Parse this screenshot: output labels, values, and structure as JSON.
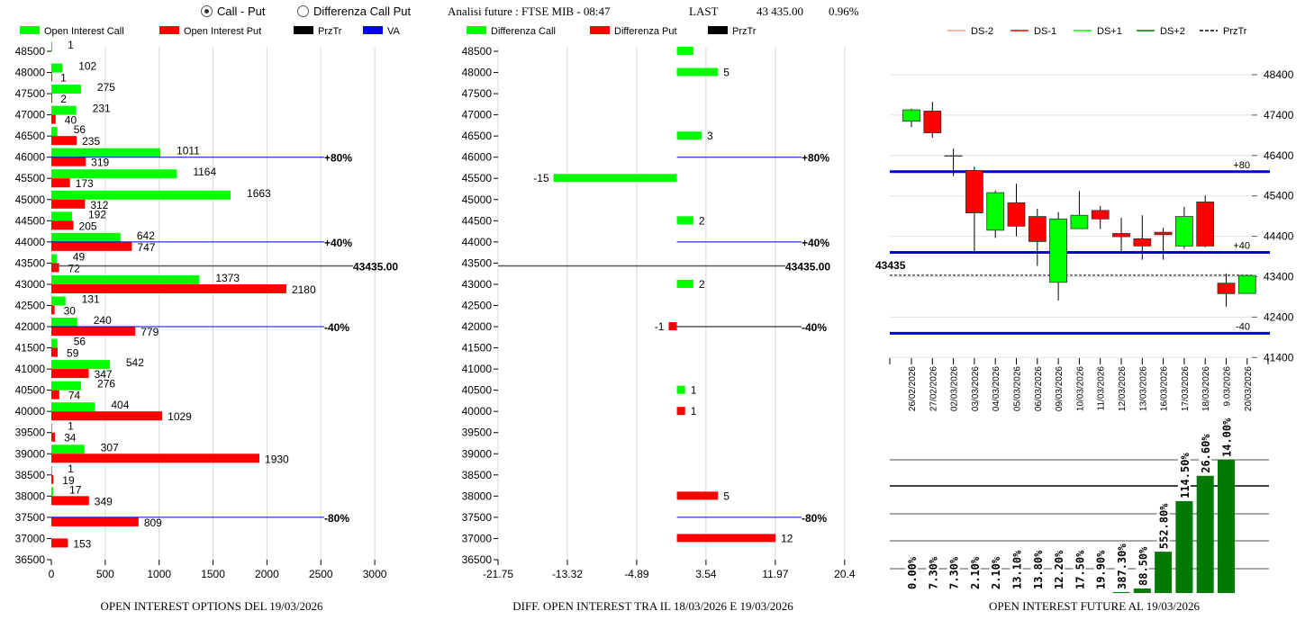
{
  "header": {
    "radio_options": [
      {
        "label": "Call - Put",
        "checked": true
      },
      {
        "label": "Differenza Call Put",
        "checked": false
      }
    ],
    "title": "Analisi future : FTSE MIB - 08:47",
    "last_label": "LAST",
    "last_value": "43 435.00",
    "change": "0.96%"
  },
  "colors": {
    "call": "#00ff00",
    "put": "#ff0000",
    "prztr": "#000000",
    "va": "#0000ff",
    "ds_minus2": "#f4a080",
    "ds_minus1": "#ff0000",
    "ds_plus1": "#00ff00",
    "ds_plus2": "#007a00",
    "future_bar": "#007a00"
  },
  "chart_data": [
    {
      "type": "bar",
      "orientation": "horizontal",
      "title": "OPEN INTEREST OPTIONS DEL 19/03/2026",
      "legend": [
        "Open Interest Call",
        "Open Interest Put",
        "PrzTr",
        "VA"
      ],
      "legend_position": "top-left",
      "xlim": [
        0,
        3000
      ],
      "xticks": [
        "0",
        "500",
        "1000",
        "1500",
        "2000",
        "2500",
        "3000"
      ],
      "yticks": [
        48500,
        48000,
        47500,
        47000,
        46500,
        46000,
        45500,
        45000,
        44500,
        44000,
        43500,
        43000,
        42500,
        42000,
        41500,
        41000,
        40500,
        40000,
        39500,
        39000,
        38500,
        38000,
        37500,
        37000,
        36500
      ],
      "grid": true,
      "strikes": [
        48500,
        48000,
        47500,
        47000,
        46500,
        46000,
        45500,
        45000,
        44500,
        44000,
        43500,
        43000,
        42500,
        42000,
        41500,
        41000,
        40500,
        40000,
        39500,
        39000,
        38500,
        38000,
        37500,
        37000
      ],
      "series": [
        {
          "name": "Open Interest Call",
          "values": [
            1,
            102,
            275,
            231,
            56,
            1011,
            1164,
            1663,
            192,
            642,
            49,
            1373,
            131,
            240,
            56,
            542,
            276,
            404,
            1,
            307,
            1,
            17,
            null,
            null
          ]
        },
        {
          "name": "Open Interest Put",
          "values": [
            null,
            1,
            2,
            40,
            235,
            319,
            173,
            312,
            205,
            747,
            72,
            2180,
            30,
            779,
            59,
            347,
            74,
            1029,
            34,
            1930,
            19,
            349,
            809,
            153
          ]
        }
      ],
      "price_line": {
        "value": 43435,
        "label": "43435.00"
      },
      "levels": [
        {
          "strike": 46000,
          "label": "+80%"
        },
        {
          "strike": 44000,
          "label": "+40%"
        },
        {
          "strike": 42000,
          "label": "-40%"
        },
        {
          "strike": 37500,
          "label": "-80%"
        }
      ]
    },
    {
      "type": "bar",
      "orientation": "horizontal",
      "title": "DIFF. OPEN INTEREST TRA IL 18/03/2026 E 19/03/2026",
      "legend": [
        "Differenza Call",
        "Differenza Put",
        "PrzTr"
      ],
      "legend_position": "top-left",
      "xlim": [
        -21.75,
        20.4
      ],
      "xticks": [
        "-21.75",
        "-13.32",
        "-4.89",
        "3.54",
        "11.97",
        "20.4"
      ],
      "yticks": [
        48500,
        48000,
        47500,
        47000,
        46500,
        46000,
        45500,
        45000,
        44500,
        44000,
        43500,
        43000,
        42500,
        42000,
        41500,
        41000,
        40500,
        40000,
        39500,
        39000,
        38500,
        38000,
        37500,
        37000,
        36500
      ],
      "grid": true,
      "bars": [
        {
          "strike": 48500,
          "series": "Differenza Call",
          "value": 2,
          "label": ""
        },
        {
          "strike": 48000,
          "series": "Differenza Call",
          "value": 5,
          "label": "5"
        },
        {
          "strike": 46500,
          "series": "Differenza Call",
          "value": 3,
          "label": "3"
        },
        {
          "strike": 45500,
          "series": "Differenza Call",
          "value": -15,
          "label": "-15"
        },
        {
          "strike": 44500,
          "series": "Differenza Call",
          "value": 2,
          "label": "2"
        },
        {
          "strike": 43000,
          "series": "Differenza Call",
          "value": 2,
          "label": "2"
        },
        {
          "strike": 42000,
          "series": "Differenza Put",
          "value": -1,
          "label": "-1"
        },
        {
          "strike": 40500,
          "series": "Differenza Call",
          "value": 1,
          "label": "1"
        },
        {
          "strike": 40000,
          "series": "Differenza Put",
          "value": 1,
          "label": "1"
        },
        {
          "strike": 38000,
          "series": "Differenza Put",
          "value": 5,
          "label": "5"
        },
        {
          "strike": 37000,
          "series": "Differenza Put",
          "value": 12,
          "label": "12"
        }
      ],
      "price_line": {
        "value": 43435,
        "label": "43435.00"
      },
      "levels": [
        {
          "strike": 46000,
          "label": "+80%",
          "color": "#0000cc"
        },
        {
          "strike": 44000,
          "label": "+40%",
          "color": "#0000cc"
        },
        {
          "strike": 42000,
          "label": "-40%",
          "color": "#000000"
        },
        {
          "strike": 37500,
          "label": "-80%",
          "color": "#0000cc"
        }
      ]
    },
    {
      "type": "candlestick",
      "legend": [
        "DS-2",
        "DS-1",
        "DS+1",
        "DS+2",
        "PrzTr"
      ],
      "legend_position": "top",
      "ylim": [
        41400,
        48400
      ],
      "yticks": [
        "48400",
        "47400",
        "46400",
        "45400",
        "44400",
        "43400",
        "42400",
        "41400"
      ],
      "grid": true,
      "candles": [
        {
          "date": "26/02/2026",
          "o": 47250,
          "h": 47560,
          "l": 47100,
          "c": 47530
        },
        {
          "date": "27/02/2026",
          "o": 47500,
          "h": 47730,
          "l": 46840,
          "c": 46960
        },
        {
          "date": "02/03/2026",
          "o": 46390,
          "h": 46570,
          "l": 45890,
          "c": 46390
        },
        {
          "date": "03/03/2026",
          "o": 46030,
          "h": 46130,
          "l": 44030,
          "c": 44980
        },
        {
          "date": "04/03/2026",
          "o": 44550,
          "h": 45530,
          "l": 44360,
          "c": 45480
        },
        {
          "date": "05/03/2026",
          "o": 45230,
          "h": 45700,
          "l": 44400,
          "c": 44650
        },
        {
          "date": "06/03/2026",
          "o": 44890,
          "h": 45080,
          "l": 43670,
          "c": 44270
        },
        {
          "date": "09/03/2026",
          "o": 43260,
          "h": 45000,
          "l": 42810,
          "c": 44830
        },
        {
          "date": "10/03/2026",
          "o": 44590,
          "h": 45520,
          "l": 44590,
          "c": 44920
        },
        {
          "date": "11/03/2026",
          "o": 45040,
          "h": 45150,
          "l": 44580,
          "c": 44830
        },
        {
          "date": "12/03/2026",
          "o": 44470,
          "h": 44860,
          "l": 44020,
          "c": 44390
        },
        {
          "date": "13/03/2026",
          "o": 44340,
          "h": 44920,
          "l": 43820,
          "c": 44160
        },
        {
          "date": "16/03/2026",
          "o": 44500,
          "h": 44610,
          "l": 43820,
          "c": 44440
        },
        {
          "date": "17/03/2026",
          "o": 44160,
          "h": 45130,
          "l": 44090,
          "c": 44890
        },
        {
          "date": "18/03/2026",
          "o": 45250,
          "h": 45410,
          "l": 44130,
          "c": 44160
        },
        {
          "date": "9.03/2026",
          "o": 43240,
          "h": 43480,
          "l": 42660,
          "c": 42980
        },
        {
          "date": "20/03/2026",
          "o": 42985,
          "h": 43430,
          "l": 42985,
          "c": 43430
        }
      ],
      "price_line": {
        "value": 43435,
        "label": "43435"
      },
      "levels": [
        {
          "value": 46000,
          "label": "+80"
        },
        {
          "value": 44000,
          "label": "+40"
        },
        {
          "value": 42000,
          "label": "-40"
        }
      ]
    },
    {
      "type": "bar",
      "title": "OPEN INTEREST FUTURE AL 19/03/2026",
      "grid": true,
      "labels": [
        "0.00%",
        "7.30%",
        "7.30%",
        "2.10%",
        "2.10%",
        "13.10%",
        "13.80%",
        "12.20%",
        "17.50%",
        "19.90%",
        "387.30%",
        "88.50%",
        "552.80%",
        "114.50%",
        "26.60%",
        "14.00%"
      ],
      "relative_values": [
        0,
        0,
        0,
        0,
        0,
        0,
        0,
        0,
        0,
        0,
        0.007,
        0.034,
        0.31,
        0.69,
        0.88,
        1.0
      ]
    }
  ]
}
